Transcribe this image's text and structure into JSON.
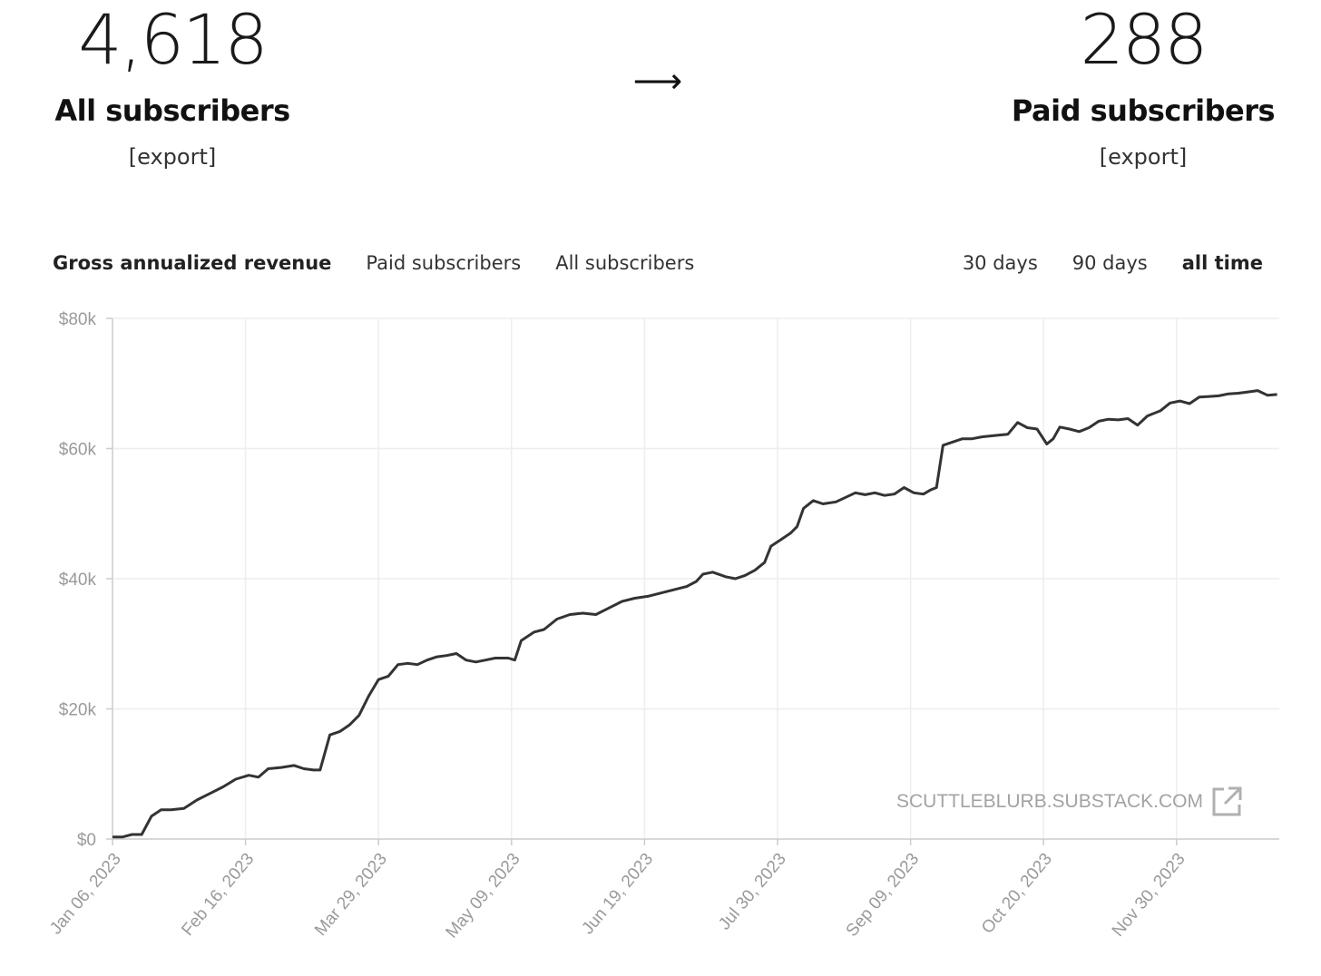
{
  "summary": {
    "all_subscribers": {
      "count": "4,618",
      "label": "All subscribers",
      "export": "[export]"
    },
    "arrow": "⟶",
    "paid_subscribers": {
      "count": "288",
      "label": "Paid subscribers",
      "export": "[export]"
    }
  },
  "metric_tabs": [
    {
      "label": "Gross annualized revenue",
      "active": true
    },
    {
      "label": "Paid subscribers",
      "active": false
    },
    {
      "label": "All subscribers",
      "active": false
    }
  ],
  "range_tabs": [
    {
      "label": "30 days",
      "active": false
    },
    {
      "label": "90 days",
      "active": false
    },
    {
      "label": "all time",
      "active": true
    }
  ],
  "watermark": {
    "text": "SCUTTLEBLURB.SUBSTACK.COM",
    "icon": "external-link-icon"
  },
  "colors": {
    "line": "#333333",
    "grid": "#eeeeee",
    "tick": "#9a9a9a"
  },
  "chart_data": {
    "type": "line",
    "x_ticks": [
      "Jan 06, 2023",
      "Feb 16, 2023",
      "Mar 29, 2023",
      "May 09, 2023",
      "Jun 19, 2023",
      "Jul 30, 2023",
      "Sep 09, 2023",
      "Oct 20, 2023",
      "Nov 30, 2023"
    ],
    "y_ticks": [
      "$0",
      "$20k",
      "$40k",
      "$60k",
      "$80k"
    ],
    "ylim": [
      0,
      80000
    ],
    "xlim": [
      "2023-01-06",
      "2023-12-31"
    ],
    "grid": true,
    "series": [
      {
        "points": [
          [
            "2023-01-06",
            300
          ],
          [
            "2023-01-09",
            300
          ],
          [
            "2023-01-12",
            700
          ],
          [
            "2023-01-15",
            700
          ],
          [
            "2023-01-18",
            3500
          ],
          [
            "2023-01-21",
            4500
          ],
          [
            "2023-01-24",
            4500
          ],
          [
            "2023-01-28",
            4700
          ],
          [
            "2023-02-01",
            6000
          ],
          [
            "2023-02-05",
            7000
          ],
          [
            "2023-02-09",
            8000
          ],
          [
            "2023-02-13",
            9200
          ],
          [
            "2023-02-17",
            9800
          ],
          [
            "2023-02-20",
            9500
          ],
          [
            "2023-02-23",
            10800
          ],
          [
            "2023-02-27",
            11000
          ],
          [
            "2023-03-03",
            11300
          ],
          [
            "2023-03-06",
            10800
          ],
          [
            "2023-03-09",
            10600
          ],
          [
            "2023-03-11",
            10600
          ],
          [
            "2023-03-14",
            16000
          ],
          [
            "2023-03-17",
            16500
          ],
          [
            "2023-03-20",
            17500
          ],
          [
            "2023-03-23",
            19000
          ],
          [
            "2023-03-26",
            22000
          ],
          [
            "2023-03-29",
            24500
          ],
          [
            "2023-04-01",
            25000
          ],
          [
            "2023-04-04",
            26800
          ],
          [
            "2023-04-07",
            27000
          ],
          [
            "2023-04-10",
            26800
          ],
          [
            "2023-04-13",
            27500
          ],
          [
            "2023-04-16",
            28000
          ],
          [
            "2023-04-19",
            28200
          ],
          [
            "2023-04-22",
            28500
          ],
          [
            "2023-04-25",
            27500
          ],
          [
            "2023-04-28",
            27200
          ],
          [
            "2023-05-01",
            27500
          ],
          [
            "2023-05-04",
            27800
          ],
          [
            "2023-05-08",
            27800
          ],
          [
            "2023-05-10",
            27500
          ],
          [
            "2023-05-12",
            30500
          ],
          [
            "2023-05-16",
            31800
          ],
          [
            "2023-05-19",
            32200
          ],
          [
            "2023-05-23",
            33800
          ],
          [
            "2023-05-27",
            34500
          ],
          [
            "2023-05-31",
            34700
          ],
          [
            "2023-06-04",
            34500
          ],
          [
            "2023-06-08",
            35500
          ],
          [
            "2023-06-12",
            36500
          ],
          [
            "2023-06-16",
            37000
          ],
          [
            "2023-06-20",
            37300
          ],
          [
            "2023-06-24",
            37800
          ],
          [
            "2023-06-28",
            38300
          ],
          [
            "2023-07-02",
            38800
          ],
          [
            "2023-07-05",
            39600
          ],
          [
            "2023-07-07",
            40700
          ],
          [
            "2023-07-10",
            41000
          ],
          [
            "2023-07-14",
            40300
          ],
          [
            "2023-07-17",
            40000
          ],
          [
            "2023-07-20",
            40500
          ],
          [
            "2023-07-23",
            41300
          ],
          [
            "2023-07-26",
            42500
          ],
          [
            "2023-07-28",
            45000
          ],
          [
            "2023-07-31",
            46000
          ],
          [
            "2023-08-03",
            47000
          ],
          [
            "2023-08-05",
            48000
          ],
          [
            "2023-08-07",
            50800
          ],
          [
            "2023-08-10",
            52000
          ],
          [
            "2023-08-13",
            51500
          ],
          [
            "2023-08-17",
            51800
          ],
          [
            "2023-08-20",
            52500
          ],
          [
            "2023-08-23",
            53200
          ],
          [
            "2023-08-26",
            52900
          ],
          [
            "2023-08-29",
            53200
          ],
          [
            "2023-09-01",
            52800
          ],
          [
            "2023-09-04",
            53000
          ],
          [
            "2023-09-07",
            54000
          ],
          [
            "2023-09-10",
            53200
          ],
          [
            "2023-09-13",
            53000
          ],
          [
            "2023-09-15",
            53600
          ],
          [
            "2023-09-17",
            54000
          ],
          [
            "2023-09-19",
            60500
          ],
          [
            "2023-09-22",
            61000
          ],
          [
            "2023-09-25",
            61500
          ],
          [
            "2023-09-28",
            61500
          ],
          [
            "2023-10-01",
            61800
          ],
          [
            "2023-10-05",
            62000
          ],
          [
            "2023-10-09",
            62200
          ],
          [
            "2023-10-12",
            64000
          ],
          [
            "2023-10-15",
            63200
          ],
          [
            "2023-10-18",
            63000
          ],
          [
            "2023-10-21",
            60700
          ],
          [
            "2023-10-23",
            61500
          ],
          [
            "2023-10-25",
            63300
          ],
          [
            "2023-10-28",
            63000
          ],
          [
            "2023-10-31",
            62600
          ],
          [
            "2023-11-03",
            63200
          ],
          [
            "2023-11-06",
            64200
          ],
          [
            "2023-11-09",
            64500
          ],
          [
            "2023-11-12",
            64400
          ],
          [
            "2023-11-15",
            64600
          ],
          [
            "2023-11-18",
            63600
          ],
          [
            "2023-11-21",
            65000
          ],
          [
            "2023-11-25",
            65800
          ],
          [
            "2023-11-28",
            67000
          ],
          [
            "2023-12-01",
            67300
          ],
          [
            "2023-12-04",
            66900
          ],
          [
            "2023-12-07",
            67900
          ],
          [
            "2023-12-10",
            68000
          ],
          [
            "2023-12-13",
            68100
          ],
          [
            "2023-12-16",
            68400
          ],
          [
            "2023-12-19",
            68500
          ],
          [
            "2023-12-22",
            68700
          ],
          [
            "2023-12-25",
            68900
          ],
          [
            "2023-12-28",
            68200
          ],
          [
            "2023-12-31",
            68300
          ]
        ]
      }
    ]
  }
}
